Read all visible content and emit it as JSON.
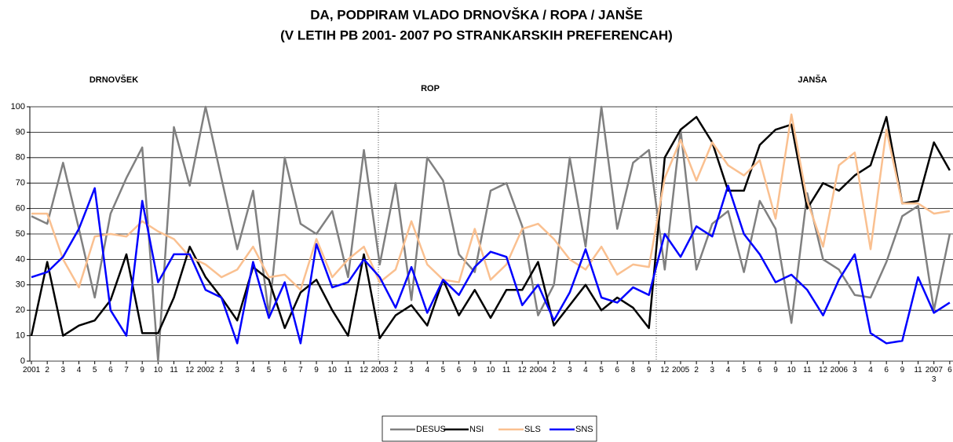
{
  "chart_data": {
    "type": "line",
    "title": "DA, PODPIRAM VLADO DRNOVŠKA / ROPA / JANŠE",
    "subtitle": "(V LETIH PB 2001- 2007 PO STRANKARSKIH PREFERENCAH)",
    "annotations": [
      "DRNOVŠEK",
      "ROP",
      "JANŠA"
    ],
    "categories": [
      "2001",
      "2",
      "3",
      "4",
      "5",
      "6",
      "7",
      "9",
      "10",
      "11",
      "12",
      "2002",
      "2",
      "3",
      "4",
      "5",
      "6",
      "7",
      "9",
      "10",
      "11",
      "12",
      "2003",
      "2",
      "3",
      "4",
      "5",
      "6",
      "9",
      "10",
      "11",
      "12",
      "2004",
      "2",
      "3",
      "4",
      "5",
      "6",
      "8",
      "9",
      "12",
      "2005",
      "2",
      "3",
      "4",
      "5",
      "6",
      "9",
      "10",
      "11",
      "12",
      "2006",
      "3",
      "4",
      "6",
      "9",
      "11",
      "2007 3",
      "6"
    ],
    "series": [
      {
        "name": "DESUS",
        "color": "#808080",
        "values": [
          57,
          54,
          78,
          52,
          25,
          58,
          72,
          84,
          0,
          92,
          69,
          100,
          72,
          44,
          67,
          18,
          80,
          54,
          50,
          59,
          33,
          83,
          38,
          70,
          24,
          80,
          71,
          42,
          35,
          67,
          70,
          53,
          18,
          30,
          80,
          45,
          100,
          52,
          78,
          83,
          36,
          91,
          36,
          54,
          59,
          35,
          63,
          52,
          15,
          66,
          40,
          36,
          26,
          25,
          39,
          57,
          61,
          20,
          50
        ]
      },
      {
        "name": "NSI",
        "color": "#000000",
        "values": [
          10,
          39,
          10,
          14,
          16,
          24,
          42,
          11,
          11,
          25,
          45,
          33,
          25,
          16,
          37,
          32,
          13,
          27,
          32,
          20,
          10,
          42,
          9,
          18,
          22,
          14,
          32,
          18,
          28,
          17,
          28,
          28,
          39,
          14,
          22,
          30,
          20,
          25,
          21,
          13,
          80,
          91,
          96,
          86,
          67,
          67,
          85,
          91,
          93,
          60,
          70,
          67,
          73,
          77,
          96,
          62,
          63,
          86,
          75
        ]
      },
      {
        "name": "SLS",
        "color": "#fac090",
        "values": [
          58,
          58,
          40,
          29,
          49,
          50,
          49,
          55,
          51,
          48,
          41,
          38,
          33,
          36,
          45,
          33,
          34,
          28,
          48,
          33,
          40,
          45,
          31,
          36,
          55,
          38,
          32,
          31,
          52,
          32,
          38,
          52,
          54,
          48,
          40,
          36,
          45,
          34,
          38,
          37,
          72,
          87,
          71,
          86,
          77,
          73,
          79,
          56,
          97,
          63,
          45,
          77,
          82,
          44,
          91,
          62,
          62,
          58,
          59
        ]
      },
      {
        "name": "SNS",
        "color": "#0000ff",
        "values": [
          33,
          35,
          41,
          52,
          68,
          20,
          10,
          63,
          31,
          42,
          42,
          28,
          25,
          7,
          39,
          17,
          31,
          7,
          46,
          29,
          31,
          40,
          33,
          21,
          37,
          19,
          32,
          26,
          37,
          43,
          41,
          22,
          30,
          16,
          27,
          44,
          25,
          23,
          29,
          26,
          50,
          41,
          53,
          49,
          69,
          50,
          42,
          31,
          34,
          28,
          18,
          32,
          42,
          11,
          7,
          8,
          33,
          19,
          23
        ]
      }
    ],
    "ylim": [
      0,
      100
    ],
    "yticks": [
      0,
      10,
      20,
      30,
      40,
      50,
      60,
      70,
      80,
      90,
      100
    ],
    "grid": true,
    "legend": "bottom"
  }
}
